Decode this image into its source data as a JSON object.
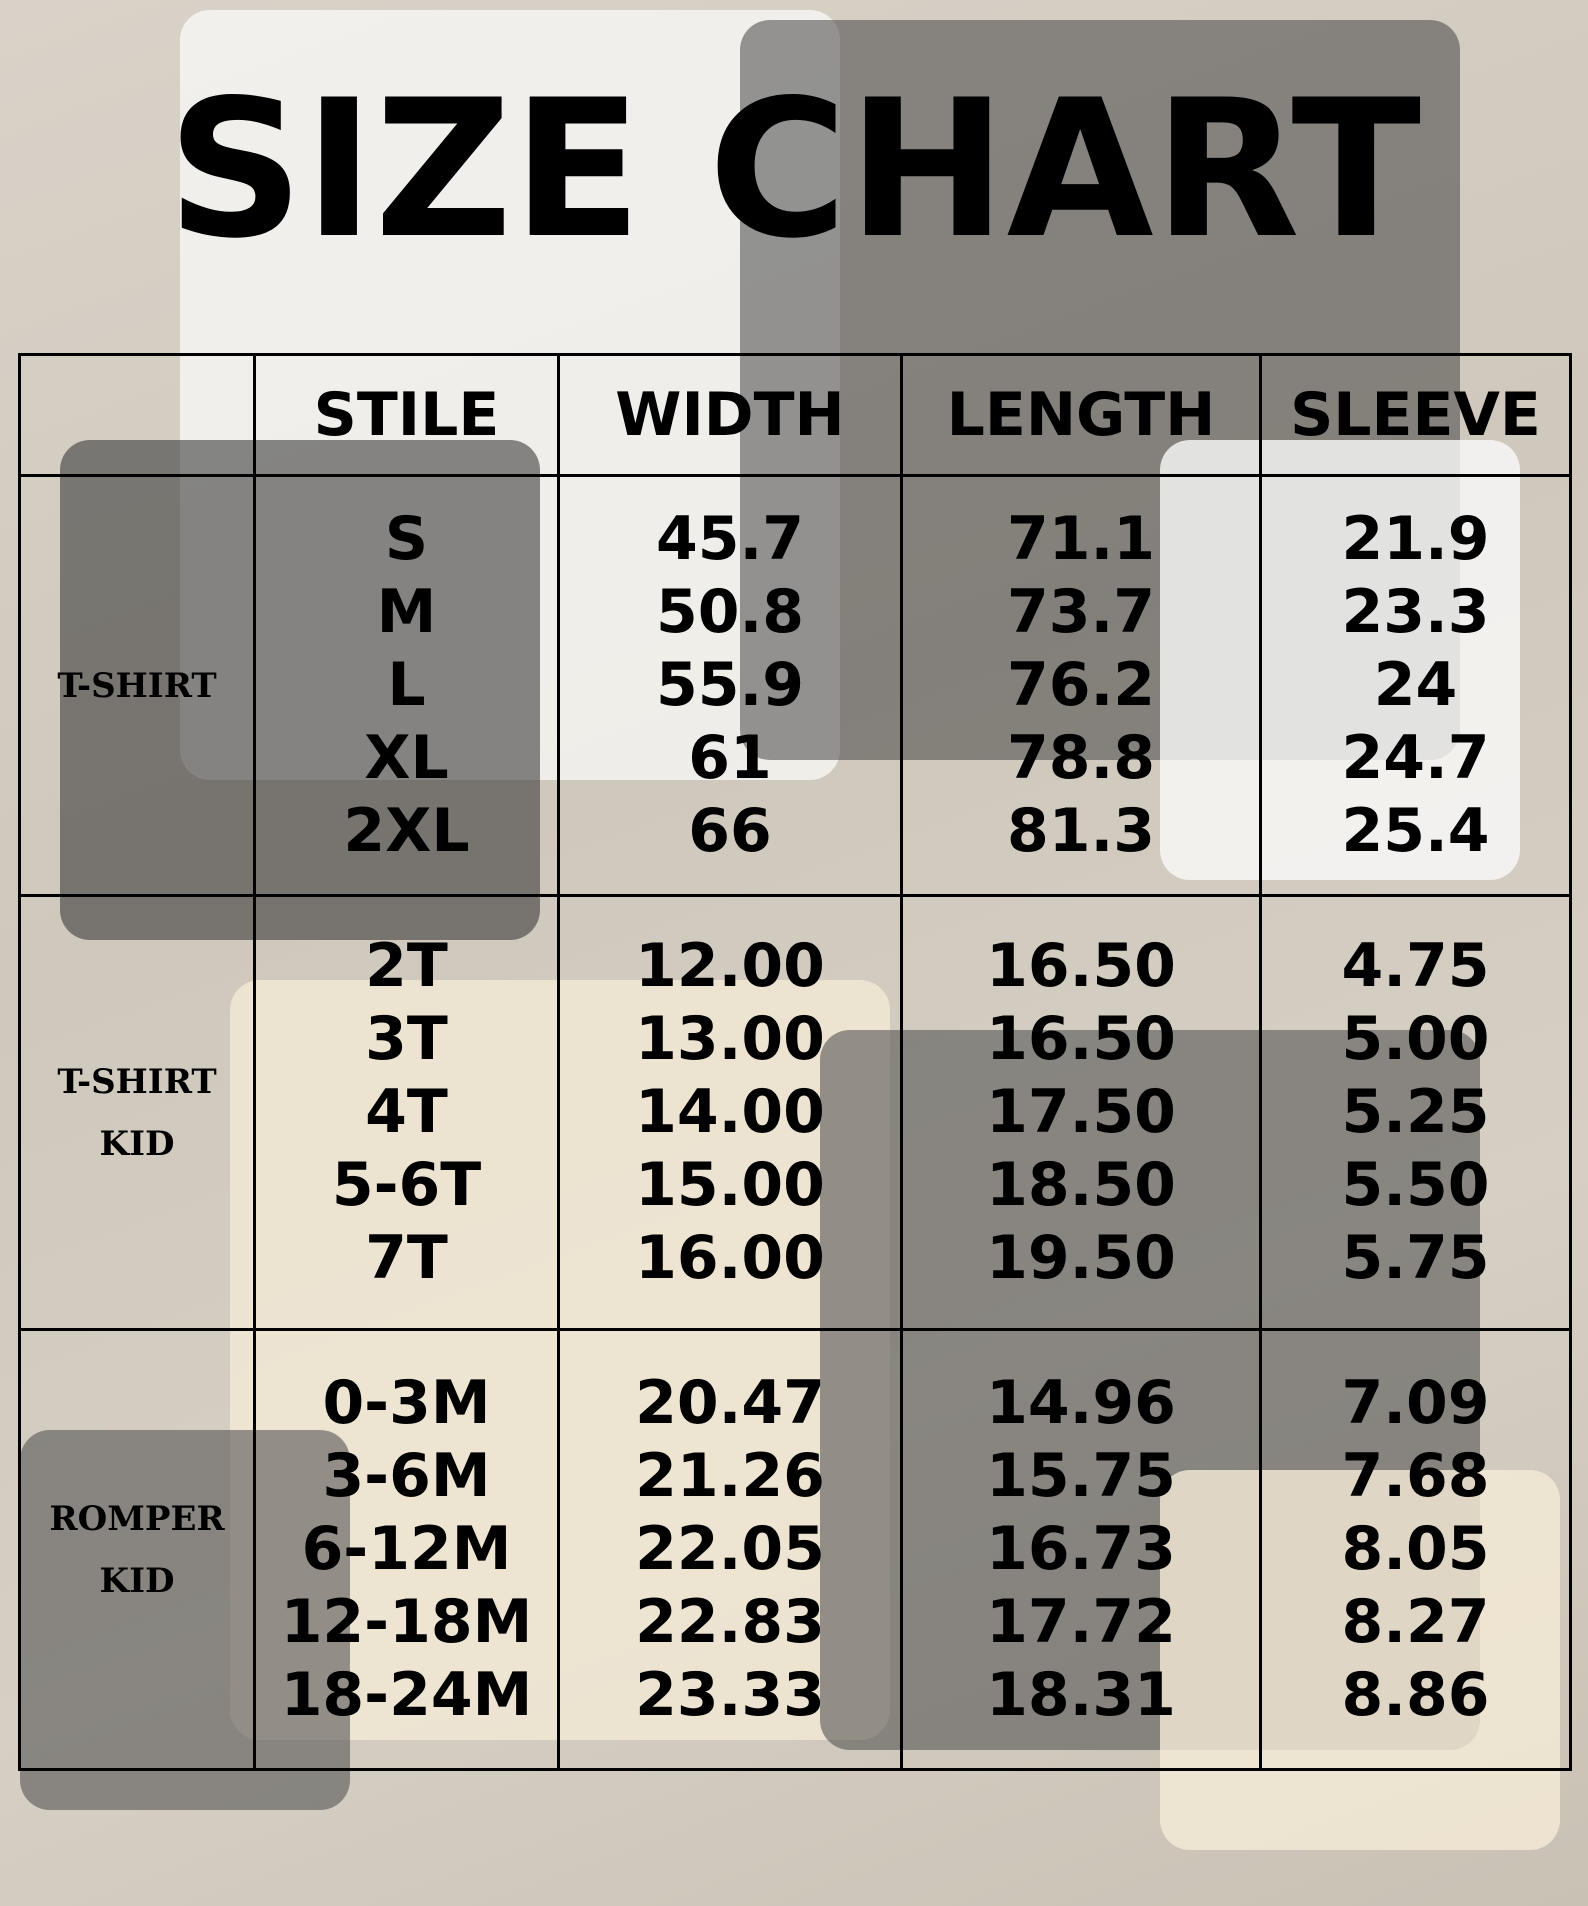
{
  "title": "SIZE CHART",
  "headers": [
    "",
    "STILE",
    "WIDTH",
    "LENGTH",
    "SLEEVE"
  ],
  "groups": [
    {
      "name": "T-SHIRT",
      "stile": [
        "S",
        "M",
        "L",
        "XL",
        "2XL"
      ],
      "width": [
        "45.7",
        "50.8",
        "55.9",
        "61",
        "66"
      ],
      "length": [
        "71.1",
        "73.7",
        "76.2",
        "78.8",
        "81.3"
      ],
      "sleeve": [
        "21.9",
        "23.3",
        "24",
        "24.7",
        "25.4"
      ]
    },
    {
      "name": "T-SHIRT KID",
      "stile": [
        "2T",
        "3T",
        "4T",
        "5-6T",
        "7T"
      ],
      "width": [
        "12.00",
        "13.00",
        "14.00",
        "15.00",
        "16.00"
      ],
      "length": [
        "16.50",
        "16.50",
        "17.50",
        "18.50",
        "19.50"
      ],
      "sleeve": [
        "4.75",
        "5.00",
        "5.25",
        "5.50",
        "5.75"
      ]
    },
    {
      "name": "ROMPER KID",
      "stile": [
        "0-3M",
        "3-6M",
        "6-12M",
        "12-18M",
        "18-24M"
      ],
      "width": [
        "20.47",
        "21.26",
        "22.05",
        "22.83",
        "23.33"
      ],
      "length": [
        "14.96",
        "15.75",
        "16.73",
        "17.72",
        "18.31"
      ],
      "sleeve": [
        "7.09",
        "7.68",
        "8.05",
        "8.27",
        "8.86"
      ]
    }
  ]
}
